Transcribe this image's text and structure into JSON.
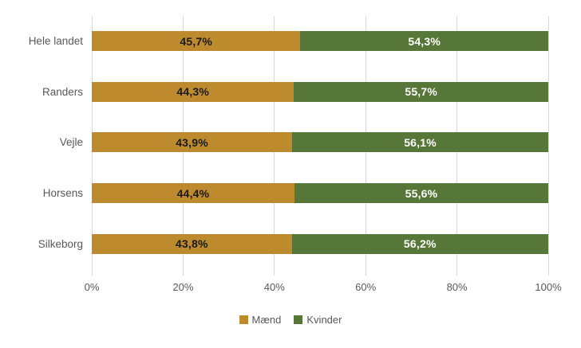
{
  "chart_data": {
    "type": "bar",
    "orientation": "horizontal",
    "stacked": true,
    "title": "",
    "xlabel": "",
    "ylabel": "",
    "grid": true,
    "categories": [
      "Hele landet",
      "Randers",
      "Vejle",
      "Horsens",
      "Silkeborg"
    ],
    "series": [
      {
        "name": "Mænd",
        "color": "#BE8A2E",
        "values": [
          45.7,
          44.3,
          43.9,
          44.4,
          43.8
        ],
        "labels": [
          "45,7%",
          "44,3%",
          "43,9%",
          "44,4%",
          "43,8%"
        ],
        "label_color": "#1a1a1a"
      },
      {
        "name": "Kvinder",
        "color": "#567737",
        "values": [
          54.3,
          55.7,
          56.1,
          55.6,
          56.2
        ],
        "labels": [
          "54,3%",
          "55,7%",
          "56,1%",
          "55,6%",
          "56,2%"
        ],
        "label_color": "#ffffff"
      }
    ],
    "x_axis": {
      "min": 0,
      "max": 100,
      "tick_step": 20,
      "ticks": [
        "0%",
        "20%",
        "40%",
        "60%",
        "80%",
        "100%"
      ]
    },
    "legend": {
      "position": "bottom",
      "items": [
        {
          "label": "Mænd",
          "color": "#BE8A2E"
        },
        {
          "label": "Kvinder",
          "color": "#567737"
        }
      ]
    }
  },
  "style_colors": {
    "gridline": "#d9d9d9",
    "axis_text": "#595959",
    "background": "#ffffff"
  }
}
